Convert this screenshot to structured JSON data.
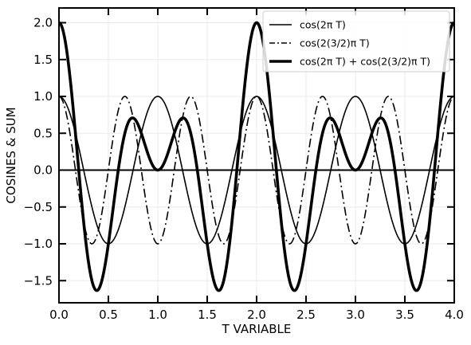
{
  "chart_data": {
    "type": "line",
    "xlabel": "T VARIABLE",
    "ylabel": "COSINES & SUM",
    "xlim": [
      0.0,
      4.0
    ],
    "ylim": [
      -1.8,
      2.2
    ],
    "grid": true,
    "legend_position": "top-right",
    "x_ticks": [
      {
        "value": 0.0,
        "label": "0.0"
      },
      {
        "value": 0.5,
        "label": "0.5"
      },
      {
        "value": 1.0,
        "label": "1.0"
      },
      {
        "value": 1.5,
        "label": "1.5"
      },
      {
        "value": 2.0,
        "label": "2.0"
      },
      {
        "value": 2.5,
        "label": "2.5"
      },
      {
        "value": 3.0,
        "label": "3.0"
      },
      {
        "value": 3.5,
        "label": "3.5"
      },
      {
        "value": 4.0,
        "label": "4.0"
      }
    ],
    "y_ticks": [
      {
        "value": -1.5,
        "label": "−1.5"
      },
      {
        "value": -1.0,
        "label": "−1.0"
      },
      {
        "value": -0.5,
        "label": "−0.5"
      },
      {
        "value": 0.0,
        "label": "0.0"
      },
      {
        "value": 0.5,
        "label": "0.5"
      },
      {
        "value": 1.0,
        "label": "1.0"
      },
      {
        "value": 1.5,
        "label": "1.5"
      },
      {
        "value": 2.0,
        "label": "2.0"
      }
    ],
    "x": [
      0.0,
      0.1,
      0.2,
      0.3,
      0.4,
      0.5,
      0.6,
      0.7,
      0.8,
      0.9,
      1.0,
      1.1,
      1.2,
      1.3,
      1.4,
      1.5,
      1.6,
      1.7,
      1.8,
      1.9,
      2.0,
      2.1,
      2.2,
      2.3,
      2.4,
      2.5,
      2.6,
      2.7,
      2.8,
      2.9,
      3.0,
      3.1,
      3.2,
      3.3,
      3.4,
      3.5,
      3.6,
      3.7,
      3.8,
      3.9,
      4.0
    ],
    "series": [
      {
        "name": "cos(2π T)",
        "style": "solid",
        "width": "thin",
        "color": "#000000",
        "values": [
          1.0,
          0.81,
          0.31,
          -0.31,
          -0.81,
          -1.0,
          -0.81,
          -0.31,
          0.31,
          0.81,
          1.0,
          0.81,
          0.31,
          -0.31,
          -0.81,
          -1.0,
          -0.81,
          -0.31,
          0.31,
          0.81,
          1.0,
          0.81,
          0.31,
          -0.31,
          -0.81,
          -1.0,
          -0.81,
          -0.31,
          0.31,
          0.81,
          1.0,
          0.81,
          0.31,
          -0.31,
          -0.81,
          -1.0,
          -0.81,
          -0.31,
          0.31,
          0.81,
          1.0
        ]
      },
      {
        "name": "cos(2(3/2)π T)",
        "style": "dashdot",
        "width": "thin",
        "color": "#000000",
        "values": [
          1.0,
          0.59,
          -0.31,
          -0.95,
          -0.81,
          0.0,
          0.81,
          0.95,
          0.31,
          -0.59,
          -1.0,
          -0.59,
          0.31,
          0.95,
          0.81,
          0.0,
          -0.81,
          -0.95,
          -0.31,
          0.59,
          1.0,
          0.59,
          -0.31,
          -0.95,
          -0.81,
          0.0,
          0.81,
          0.95,
          0.31,
          -0.59,
          -1.0,
          -0.59,
          0.31,
          0.95,
          0.81,
          0.0,
          -0.81,
          -0.95,
          -0.31,
          0.59,
          1.0
        ]
      },
      {
        "name": "cos(2π T) + cos(2(3/2)π T)",
        "style": "solid",
        "width": "thick",
        "color": "#000000",
        "values": [
          2.0,
          1.4,
          0.0,
          -1.26,
          -1.62,
          -1.0,
          0.0,
          0.64,
          0.62,
          0.22,
          0.0,
          0.22,
          0.62,
          0.64,
          0.0,
          -1.0,
          -1.62,
          -1.26,
          0.0,
          1.4,
          2.0,
          1.4,
          0.0,
          -1.26,
          -1.62,
          -1.0,
          0.0,
          0.64,
          0.62,
          0.22,
          0.0,
          0.22,
          0.62,
          0.64,
          0.0,
          -1.0,
          -1.62,
          -1.26,
          0.0,
          1.4,
          2.0
        ]
      }
    ]
  }
}
